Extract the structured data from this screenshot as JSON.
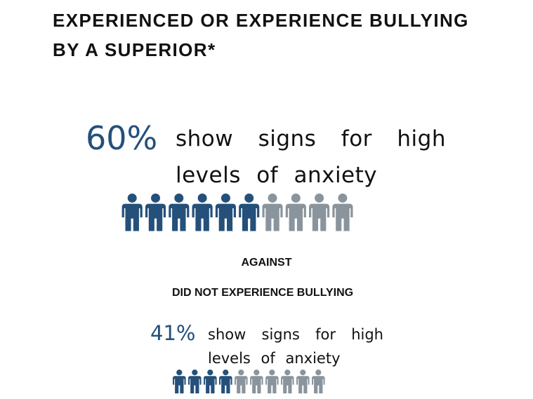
{
  "title": "EXPERIENCED OR EXPERIENCE BULLYING BY A SUPERIOR*",
  "blocks": [
    {
      "percent": "60%",
      "text": "show signs for high levels of anxiety",
      "icons_filled": 6,
      "icons_total": 10
    },
    {
      "percent": "41%",
      "text": "show signs for high levels of anxiety",
      "icons_filled": 4,
      "icons_total": 10
    }
  ],
  "separator": "AGAINST",
  "comparison_label": "DID NOT EXPERIENCE BULLYING"
}
